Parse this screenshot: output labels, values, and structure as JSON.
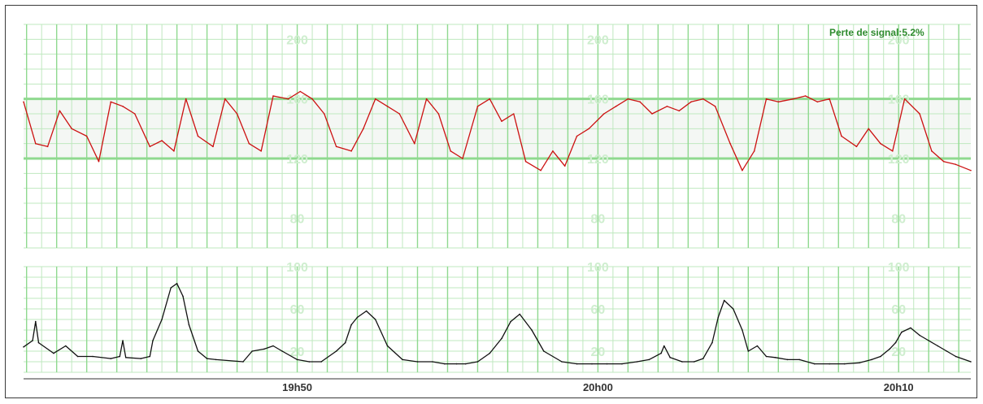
{
  "signal_loss": {
    "label": "Perte de signal:",
    "value": "5.2%"
  },
  "colors": {
    "grid": "#bfe8bf",
    "grid_major": "#8fd98f",
    "fhr_trace": "#cc1111",
    "toco_trace": "#111111",
    "band_fill": "#f4f7f4",
    "scale_label": "#cfeecf"
  },
  "chart_data": [
    {
      "type": "line",
      "name": "fhr",
      "ylim": [
        60,
        210
      ],
      "ytick_labels": [
        "200",
        "160",
        "120",
        "80"
      ],
      "ytick_values": [
        200,
        160,
        120,
        80
      ],
      "scale_label_columns_min": [
        -4,
        6,
        16
      ],
      "xlim_min": [
        -13.1,
        18.4
      ],
      "major_lines": [
        120,
        160
      ],
      "band": [
        120,
        160
      ],
      "series": [
        {
          "x": [
            -13.1,
            -12.7,
            -12.3,
            -11.9,
            -11.5,
            -11.0,
            -10.6,
            -10.2,
            -9.8,
            -9.4,
            -8.9,
            -8.5,
            -8.1,
            -7.7,
            -7.3,
            -6.8,
            -6.4,
            -6.0,
            -5.6,
            -5.2,
            -4.8,
            -4.3,
            -3.9,
            -3.5,
            -3.1,
            -2.7,
            -2.2,
            -1.8,
            -1.4,
            -1.0,
            -0.6,
            -0.1,
            0.3,
            0.7,
            1.1,
            1.5,
            2.0,
            2.4,
            2.8,
            3.2,
            3.6,
            4.1,
            4.5,
            4.9,
            5.3,
            5.7,
            6.2,
            6.6,
            7.0,
            7.4,
            7.8,
            8.3,
            8.7,
            9.1,
            9.5,
            9.9,
            10.4,
            10.8,
            11.2,
            11.6,
            12.0,
            12.5,
            12.9,
            13.3,
            13.7,
            14.1,
            14.6,
            15.0,
            15.4,
            15.8,
            16.2,
            16.7,
            17.1,
            17.5,
            17.9,
            18.4
          ],
          "values": [
            158,
            130,
            128,
            152,
            140,
            135,
            118,
            158,
            155,
            150,
            128,
            132,
            125,
            160,
            135,
            128,
            160,
            150,
            130,
            125,
            162,
            160,
            165,
            160,
            150,
            128,
            125,
            140,
            160,
            155,
            150,
            130,
            160,
            150,
            125,
            120,
            155,
            160,
            145,
            150,
            118,
            112,
            125,
            115,
            135,
            140,
            150,
            155,
            160,
            158,
            150,
            155,
            152,
            158,
            160,
            155,
            130,
            112,
            125,
            160,
            158,
            160,
            162,
            158,
            160,
            135,
            128,
            140,
            130,
            125,
            160,
            150,
            125,
            118,
            116,
            112
          ]
        }
      ]
    },
    {
      "type": "line",
      "name": "toco",
      "ylim": [
        0,
        100
      ],
      "ytick_labels": [
        "100",
        "60",
        "20"
      ],
      "ytick_values": [
        100,
        60,
        20
      ],
      "scale_label_columns_min": [
        -4,
        6,
        16
      ],
      "xlim_min": [
        -13.1,
        18.4
      ],
      "xtick_labels": [
        "19h50",
        "20h00",
        "20h10"
      ],
      "xtick_values": [
        -4,
        6,
        16
      ],
      "series": [
        {
          "x": [
            -13.1,
            -12.8,
            -12.7,
            -12.6,
            -12.1,
            -11.7,
            -11.3,
            -10.8,
            -10.2,
            -9.9,
            -9.8,
            -9.7,
            -9.2,
            -8.9,
            -8.8,
            -8.5,
            -8.2,
            -8.0,
            -7.8,
            -7.6,
            -7.3,
            -7.0,
            -6.7,
            -5.8,
            -5.5,
            -5.1,
            -4.8,
            -4.5,
            -4.0,
            -3.6,
            -3.2,
            -2.7,
            -2.4,
            -2.2,
            -2.0,
            -1.7,
            -1.4,
            -1.0,
            -0.5,
            0.0,
            0.5,
            0.9,
            1.3,
            1.6,
            2.0,
            2.4,
            2.8,
            3.1,
            3.4,
            3.8,
            4.2,
            4.8,
            5.3,
            5.8,
            6.3,
            6.8,
            7.3,
            7.7,
            8.1,
            8.2,
            8.4,
            8.8,
            9.2,
            9.5,
            9.8,
            10.0,
            10.2,
            10.5,
            10.8,
            11.0,
            11.3,
            11.6,
            11.9,
            12.3,
            12.7,
            13.2,
            13.7,
            14.2,
            14.7,
            15.1,
            15.4,
            15.7,
            15.9,
            16.1,
            16.4,
            16.7,
            17.0,
            17.3,
            17.6,
            17.9,
            18.4
          ],
          "values": [
            24,
            30,
            48,
            28,
            18,
            25,
            15,
            15,
            13,
            15,
            30,
            14,
            13,
            15,
            30,
            50,
            80,
            84,
            72,
            45,
            20,
            13,
            12,
            10,
            20,
            22,
            25,
            20,
            12,
            10,
            10,
            20,
            28,
            45,
            52,
            58,
            50,
            25,
            12,
            10,
            10,
            8,
            8,
            8,
            10,
            18,
            32,
            48,
            55,
            40,
            20,
            10,
            8,
            8,
            8,
            8,
            10,
            12,
            18,
            25,
            14,
            10,
            10,
            13,
            28,
            52,
            68,
            60,
            40,
            20,
            25,
            15,
            14,
            12,
            12,
            8,
            8,
            8,
            9,
            12,
            15,
            22,
            28,
            38,
            42,
            35,
            30,
            25,
            20,
            15,
            10
          ]
        }
      ]
    }
  ]
}
